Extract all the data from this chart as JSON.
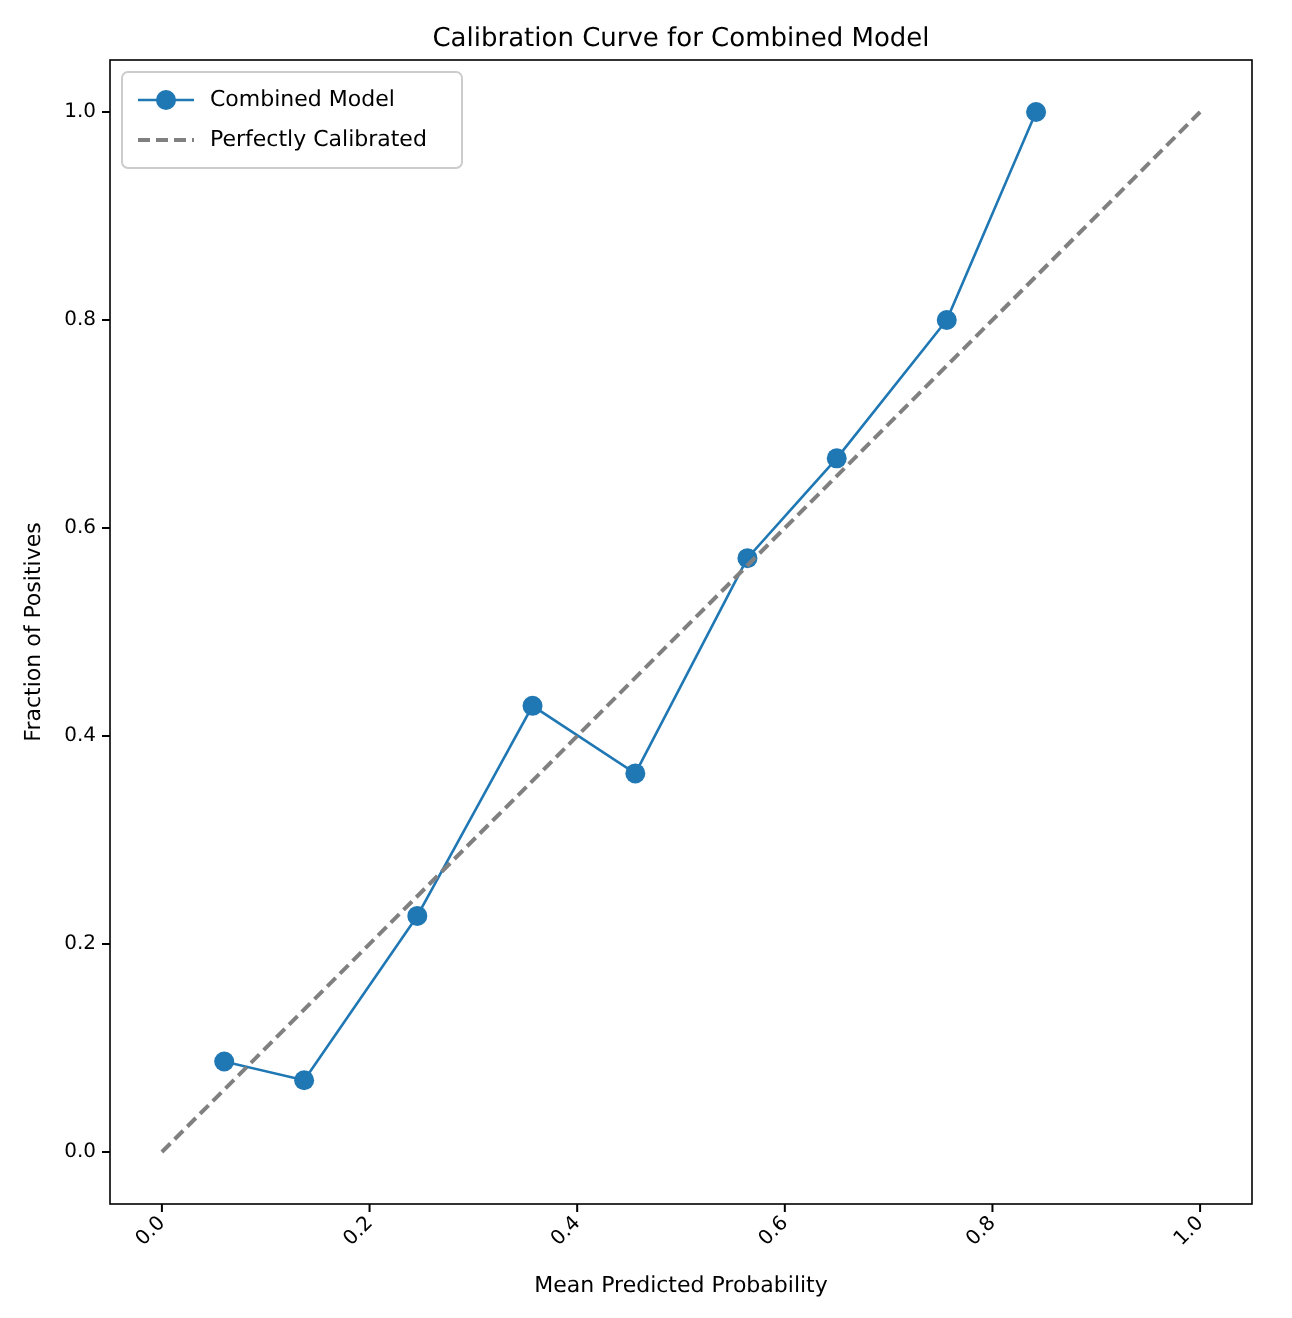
{
  "chart_data": {
    "type": "line",
    "title": "Calibration Curve for Combined Model",
    "xlabel": "Mean Predicted Probability",
    "ylabel": "Fraction of Positives",
    "xlim": [
      -0.05,
      1.05
    ],
    "ylim": [
      -0.05,
      1.05
    ],
    "xticks": [
      {
        "value": 0,
        "label": "0.0"
      },
      {
        "value": 0.2,
        "label": "0.2"
      },
      {
        "value": 0.4,
        "label": "0.4"
      },
      {
        "value": 0.6,
        "label": "0.6"
      },
      {
        "value": 0.8,
        "label": "0.8"
      },
      {
        "value": 1,
        "label": "1.0"
      }
    ],
    "yticks": [
      {
        "value": 0,
        "label": "0.0"
      },
      {
        "value": 0.2,
        "label": "0.2"
      },
      {
        "value": 0.4,
        "label": "0.4"
      },
      {
        "value": 0.6,
        "label": "0.6"
      },
      {
        "value": 0.8,
        "label": "0.8"
      },
      {
        "value": 1,
        "label": "1.0"
      }
    ],
    "legend": "top left",
    "series": [
      {
        "name": "Combined Model",
        "color": "#1f77b4",
        "marker": "circle",
        "line_style": "solid",
        "x": [
          0.06,
          0.137,
          0.246,
          0.357,
          0.456,
          0.564,
          0.65,
          0.756,
          0.842
        ],
        "values": [
          0.087,
          0.069,
          0.227,
          0.429,
          0.364,
          0.571,
          0.667,
          0.8,
          1.0
        ]
      },
      {
        "name": "Perfectly Calibrated",
        "color": "#808080",
        "marker": "none",
        "line_style": "dashed",
        "x": [
          0,
          1
        ],
        "values": [
          0,
          1
        ]
      }
    ]
  }
}
